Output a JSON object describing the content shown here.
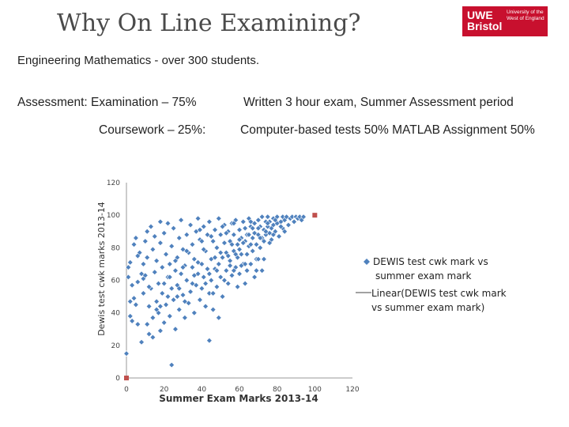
{
  "header": {
    "title": "Why On Line Examining?",
    "logo_main": "UWE Bristol",
    "logo_sub": "University of the West of England"
  },
  "subtitle": "Engineering Mathematics  - over 300 students.",
  "assessment": {
    "exam_label": "Assessment: Examination – 75%",
    "exam_detail": "Written 3 hour exam, Summer Assessment period",
    "coursework_label": "Coursework – 25%:",
    "coursework_detail": "Computer-based tests 50%   MATLAB Assignment 50%"
  },
  "colors": {
    "point": "#4f81bd",
    "trend": "#c0504d",
    "axis": "#999999",
    "logo": "#c8102e"
  },
  "chart_data": {
    "type": "scatter",
    "xlabel": "Summer Exam Marks 2013-14",
    "ylabel": "Dewis test cwk marks 2013-14",
    "xlim": [
      0,
      120
    ],
    "ylim": [
      0,
      120
    ],
    "xticks": [
      0,
      20,
      40,
      60,
      80,
      100,
      120
    ],
    "yticks": [
      0,
      20,
      40,
      60,
      80,
      100,
      120
    ],
    "legend": [
      {
        "marker": "diamond",
        "label": "DEWIS test cwk mark vs summer exam mark"
      },
      {
        "marker": "line",
        "label": "Linear(DEWIS test cwk mark vs summer exam mark)"
      }
    ],
    "legend_position": "right",
    "trend_points": [
      [
        0,
        0
      ],
      [
        100,
        100
      ]
    ],
    "series": [
      {
        "points": [
          [
            0,
            15
          ],
          [
            1,
            62
          ],
          [
            1,
            68
          ],
          [
            2,
            38
          ],
          [
            2,
            47
          ],
          [
            2,
            71
          ],
          [
            3,
            35
          ],
          [
            4,
            49
          ],
          [
            4,
            82
          ],
          [
            5,
            45
          ],
          [
            6,
            33
          ],
          [
            6,
            59
          ],
          [
            8,
            22
          ],
          [
            8,
            64
          ],
          [
            9,
            52
          ],
          [
            9,
            61
          ],
          [
            10,
            84
          ],
          [
            11,
            90
          ],
          [
            11,
            74
          ],
          [
            12,
            27
          ],
          [
            12,
            44
          ],
          [
            13,
            55
          ],
          [
            13,
            93
          ],
          [
            14,
            79
          ],
          [
            14,
            37
          ],
          [
            15,
            65
          ],
          [
            15,
            87
          ],
          [
            16,
            47
          ],
          [
            16,
            72
          ],
          [
            17,
            58
          ],
          [
            17,
            40
          ],
          [
            18,
            96
          ],
          [
            18,
            29
          ],
          [
            18,
            83
          ],
          [
            19,
            68
          ],
          [
            19,
            52
          ],
          [
            20,
            34
          ],
          [
            20,
            89
          ],
          [
            21,
            76
          ],
          [
            21,
            45
          ],
          [
            22,
            62
          ],
          [
            22,
            95
          ],
          [
            23,
            38
          ],
          [
            23,
            70
          ],
          [
            24,
            55
          ],
          [
            24,
            81
          ],
          [
            25,
            48
          ],
          [
            25,
            92
          ],
          [
            26,
            66
          ],
          [
            26,
            30
          ],
          [
            27,
            74
          ],
          [
            27,
            57
          ],
          [
            28,
            86
          ],
          [
            28,
            42
          ],
          [
            29,
            64
          ],
          [
            29,
            97
          ],
          [
            30,
            51
          ],
          [
            30,
            79
          ],
          [
            31,
            37
          ],
          [
            31,
            69
          ],
          [
            32,
            88
          ],
          [
            32,
            60
          ],
          [
            33,
            46
          ],
          [
            33,
            77
          ],
          [
            34,
            94
          ],
          [
            34,
            53
          ],
          [
            35,
            68
          ],
          [
            35,
            82
          ],
          [
            36,
            40
          ],
          [
            36,
            73
          ],
          [
            37,
            57
          ],
          [
            37,
            90
          ],
          [
            38,
            64
          ],
          [
            38,
            98
          ],
          [
            39,
            48
          ],
          [
            39,
            85
          ],
          [
            40,
            70
          ],
          [
            40,
            55
          ],
          [
            41,
            93
          ],
          [
            41,
            62
          ],
          [
            42,
            78
          ],
          [
            42,
            44
          ],
          [
            43,
            88
          ],
          [
            43,
            67
          ],
          [
            44,
            52
          ],
          [
            44,
            96
          ],
          [
            45,
            73
          ],
          [
            45,
            60
          ],
          [
            46,
            84
          ],
          [
            46,
            42
          ],
          [
            47,
            91
          ],
          [
            47,
            67
          ],
          [
            48,
            56
          ],
          [
            48,
            80
          ],
          [
            49,
            98
          ],
          [
            49,
            70
          ],
          [
            50,
            62
          ],
          [
            50,
            88
          ],
          [
            51,
            74
          ],
          [
            51,
            50
          ],
          [
            52,
            94
          ],
          [
            52,
            83
          ],
          [
            53,
            66
          ],
          [
            53,
            77
          ],
          [
            54,
            90
          ],
          [
            54,
            58
          ],
          [
            55,
            84
          ],
          [
            55,
            72
          ],
          [
            56,
            95
          ],
          [
            56,
            63
          ],
          [
            57,
            78
          ],
          [
            57,
            88
          ],
          [
            58,
            68
          ],
          [
            58,
            97
          ],
          [
            59,
            82
          ],
          [
            59,
            74
          ],
          [
            60,
            91
          ],
          [
            60,
            64
          ],
          [
            61,
            86
          ],
          [
            61,
            76
          ],
          [
            62,
            96
          ],
          [
            62,
            70
          ],
          [
            63,
            84
          ],
          [
            63,
            92
          ],
          [
            64,
            76
          ],
          [
            64,
            88
          ],
          [
            65,
            98
          ],
          [
            65,
            81
          ],
          [
            66,
            70
          ],
          [
            66,
            93
          ],
          [
            67,
            86
          ],
          [
            67,
            78
          ],
          [
            68,
            95
          ],
          [
            68,
            89
          ],
          [
            69,
            82
          ],
          [
            69,
            73
          ],
          [
            70,
            97
          ],
          [
            70,
            88
          ],
          [
            71,
            80
          ],
          [
            71,
            93
          ],
          [
            72,
            86
          ],
          [
            72,
            99
          ],
          [
            73,
            91
          ],
          [
            73,
            84
          ],
          [
            74,
            96
          ],
          [
            74,
            88
          ],
          [
            75,
            93
          ],
          [
            75,
            99
          ],
          [
            76,
            89
          ],
          [
            76,
            96
          ],
          [
            77,
            92
          ],
          [
            77,
            85
          ],
          [
            78,
            98
          ],
          [
            78,
            94
          ],
          [
            79,
            90
          ],
          [
            80,
            99
          ],
          [
            80,
            95
          ],
          [
            81,
            87
          ],
          [
            82,
            96
          ],
          [
            83,
            99
          ],
          [
            83,
            92
          ],
          [
            84,
            97
          ],
          [
            85,
            99
          ],
          [
            86,
            94
          ],
          [
            87,
            98
          ],
          [
            88,
            99
          ],
          [
            89,
            96
          ],
          [
            90,
            99
          ],
          [
            91,
            98
          ],
          [
            92,
            99
          ],
          [
            93,
            97
          ],
          [
            94,
            99
          ],
          [
            24,
            8
          ],
          [
            10,
            63
          ],
          [
            5,
            86
          ],
          [
            3,
            57
          ],
          [
            7,
            77
          ],
          [
            44,
            23
          ],
          [
            14,
            25
          ],
          [
            16,
            42
          ],
          [
            49,
            37
          ],
          [
            11,
            33
          ],
          [
            27,
            50
          ],
          [
            52,
            60
          ],
          [
            58,
            76
          ],
          [
            63,
            58
          ],
          [
            68,
            62
          ],
          [
            72,
            66
          ],
          [
            64,
            66
          ],
          [
            70,
            73
          ],
          [
            66,
            82
          ],
          [
            61,
            69
          ],
          [
            55,
            69
          ],
          [
            59,
            56
          ],
          [
            63,
            70
          ],
          [
            57,
            66
          ],
          [
            69,
            66
          ],
          [
            73,
            73
          ],
          [
            40,
            84
          ],
          [
            35,
            58
          ],
          [
            31,
            47
          ],
          [
            23,
            62
          ],
          [
            46,
            52
          ],
          [
            50,
            77
          ],
          [
            38,
            71
          ],
          [
            44,
            64
          ],
          [
            30,
            68
          ],
          [
            41,
            79
          ],
          [
            47,
            74
          ],
          [
            53,
            89
          ],
          [
            56,
            82
          ],
          [
            60,
            79
          ],
          [
            65,
            88
          ],
          [
            67,
            92
          ],
          [
            71,
            86
          ],
          [
            74,
            90
          ],
          [
            76,
            83
          ],
          [
            78,
            88
          ],
          [
            62,
            83
          ],
          [
            54,
            75
          ],
          [
            48,
            66
          ],
          [
            42,
            58
          ],
          [
            36,
            63
          ],
          [
            28,
            55
          ],
          [
            22,
            50
          ],
          [
            18,
            44
          ],
          [
            12,
            56
          ],
          [
            9,
            70
          ],
          [
            6,
            75
          ],
          [
            20,
            58
          ],
          [
            26,
            72
          ],
          [
            32,
            78
          ],
          [
            39,
            91
          ],
          [
            45,
            87
          ],
          [
            51,
            93
          ],
          [
            57,
            95
          ],
          [
            60,
            85
          ],
          [
            66,
            96
          ],
          [
            70,
            92
          ],
          [
            75,
            95
          ],
          [
            79,
            97
          ],
          [
            82,
            93
          ],
          [
            84,
            90
          ]
        ]
      }
    ]
  }
}
